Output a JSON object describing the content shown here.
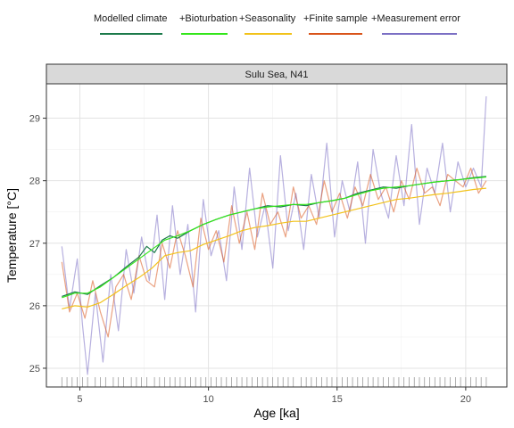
{
  "chart_data": {
    "type": "line",
    "facet_label": "Sulu Sea, N41",
    "xlabel": "Age [ka]",
    "ylabel": "Temperature [°C]",
    "xlim": [
      3.7,
      21.6
    ],
    "ylim": [
      24.7,
      29.55
    ],
    "x_ticks": [
      5,
      10,
      15,
      20
    ],
    "y_ticks": [
      25,
      26,
      27,
      28,
      29
    ],
    "grid": true,
    "legend_position": "top",
    "series": [
      {
        "name": "Modelled climate",
        "color": "#1b7a4a",
        "x": [
          4.3,
          4.8,
          5.3,
          5.8,
          6.3,
          6.8,
          7.3,
          7.6,
          7.9,
          8.2,
          8.5,
          8.8,
          9.3,
          9.8,
          10.3,
          10.8,
          11.3,
          11.8,
          12.3,
          12.8,
          13.3,
          13.8,
          14.3,
          14.8,
          15.3,
          15.8,
          16.3,
          16.8,
          17.3,
          17.8,
          18.3,
          18.8,
          19.3,
          19.8,
          20.3,
          20.8
        ],
        "values": [
          26.15,
          26.22,
          26.18,
          26.32,
          26.45,
          26.62,
          26.78,
          26.95,
          26.85,
          27.05,
          27.12,
          27.08,
          27.2,
          27.3,
          27.38,
          27.45,
          27.5,
          27.55,
          27.6,
          27.58,
          27.62,
          27.6,
          27.65,
          27.68,
          27.72,
          27.8,
          27.85,
          27.9,
          27.88,
          27.92,
          27.95,
          27.98,
          28.0,
          28.02,
          28.05,
          28.07
        ]
      },
      {
        "name": "+Bioturbation",
        "color": "#33e61a",
        "x": [
          4.3,
          4.8,
          5.3,
          5.8,
          6.3,
          6.8,
          7.3,
          7.8,
          8.3,
          8.8,
          9.3,
          9.8,
          10.3,
          10.8,
          11.3,
          11.8,
          12.3,
          12.8,
          13.3,
          13.8,
          14.3,
          14.8,
          15.3,
          15.8,
          16.3,
          16.8,
          17.3,
          17.8,
          18.3,
          18.8,
          19.3,
          19.8,
          20.3,
          20.8
        ],
        "values": [
          26.13,
          26.2,
          26.2,
          26.3,
          26.45,
          26.6,
          26.75,
          26.9,
          27.05,
          27.12,
          27.2,
          27.3,
          27.38,
          27.45,
          27.5,
          27.55,
          27.58,
          27.6,
          27.62,
          27.62,
          27.65,
          27.68,
          27.72,
          27.78,
          27.84,
          27.88,
          27.9,
          27.92,
          27.95,
          27.98,
          28.0,
          28.02,
          28.04,
          28.06
        ]
      },
      {
        "name": "+Seasonality",
        "color": "#f2c21a",
        "x": [
          4.3,
          4.8,
          5.3,
          5.8,
          6.3,
          6.8,
          7.3,
          7.8,
          8.3,
          8.8,
          9.3,
          9.8,
          10.3,
          10.8,
          11.3,
          11.8,
          12.3,
          12.8,
          13.3,
          13.8,
          14.3,
          14.8,
          15.3,
          15.8,
          16.3,
          16.8,
          17.3,
          17.8,
          18.3,
          18.8,
          19.3,
          19.8,
          20.3,
          20.8
        ],
        "values": [
          25.95,
          26.0,
          25.98,
          26.05,
          26.18,
          26.32,
          26.45,
          26.6,
          26.8,
          26.85,
          26.88,
          26.98,
          27.05,
          27.12,
          27.2,
          27.25,
          27.28,
          27.32,
          27.35,
          27.35,
          27.4,
          27.45,
          27.5,
          27.55,
          27.6,
          27.65,
          27.7,
          27.72,
          27.75,
          27.78,
          27.8,
          27.83,
          27.86,
          27.88
        ]
      },
      {
        "name": "+Finite sample",
        "color": "#d9541a",
        "x": [
          4.3,
          4.6,
          4.9,
          5.2,
          5.5,
          5.8,
          6.1,
          6.4,
          6.7,
          7.0,
          7.3,
          7.6,
          7.9,
          8.2,
          8.5,
          8.8,
          9.1,
          9.4,
          9.7,
          10.0,
          10.3,
          10.6,
          10.9,
          11.2,
          11.5,
          11.8,
          12.1,
          12.4,
          12.7,
          13.0,
          13.3,
          13.6,
          13.9,
          14.2,
          14.5,
          14.8,
          15.1,
          15.4,
          15.7,
          16.0,
          16.3,
          16.6,
          16.9,
          17.2,
          17.5,
          17.8,
          18.1,
          18.4,
          18.7,
          19.0,
          19.3,
          19.6,
          19.9,
          20.2,
          20.5,
          20.8
        ],
        "values": [
          26.7,
          25.9,
          26.2,
          25.8,
          26.4,
          25.9,
          25.5,
          26.3,
          26.5,
          26.1,
          26.8,
          26.4,
          26.3,
          27.0,
          26.6,
          27.2,
          26.8,
          26.3,
          27.4,
          26.9,
          27.2,
          26.7,
          27.6,
          27.0,
          27.5,
          26.9,
          27.8,
          27.3,
          27.5,
          27.1,
          27.9,
          27.4,
          27.6,
          27.3,
          28.0,
          27.5,
          27.8,
          27.4,
          27.9,
          27.6,
          28.1,
          27.7,
          27.9,
          27.5,
          28.0,
          27.7,
          28.2,
          27.8,
          27.9,
          27.6,
          28.1,
          28.0,
          27.9,
          28.2,
          27.8,
          28.0
        ]
      },
      {
        "name": "+Measurement error",
        "color": "#7b6fc4",
        "x": [
          4.3,
          4.6,
          4.9,
          5.1,
          5.3,
          5.6,
          5.9,
          6.2,
          6.5,
          6.8,
          7.1,
          7.4,
          7.7,
          8.0,
          8.3,
          8.6,
          8.9,
          9.2,
          9.5,
          9.8,
          10.1,
          10.4,
          10.7,
          11.0,
          11.3,
          11.6,
          11.9,
          12.2,
          12.5,
          12.8,
          13.1,
          13.4,
          13.7,
          14.0,
          14.3,
          14.6,
          14.9,
          15.2,
          15.5,
          15.8,
          16.1,
          16.4,
          16.7,
          17.0,
          17.3,
          17.6,
          17.9,
          18.2,
          18.5,
          18.8,
          19.1,
          19.4,
          19.7,
          20.0,
          20.3,
          20.6,
          20.8
        ],
        "values": [
          26.95,
          25.95,
          26.75,
          25.7,
          24.9,
          26.2,
          25.1,
          26.5,
          25.6,
          26.9,
          26.2,
          27.1,
          26.4,
          27.45,
          26.1,
          27.6,
          26.5,
          27.3,
          25.9,
          27.7,
          26.8,
          27.2,
          26.4,
          27.9,
          26.9,
          28.2,
          27.1,
          27.6,
          26.6,
          28.4,
          27.2,
          27.8,
          26.9,
          28.1,
          27.4,
          28.6,
          27.1,
          28.0,
          27.5,
          28.3,
          27.0,
          28.5,
          27.8,
          27.4,
          28.4,
          27.6,
          28.9,
          27.3,
          28.2,
          27.8,
          28.6,
          27.5,
          28.3,
          27.9,
          28.2,
          27.9,
          29.35
        ]
      }
    ],
    "sample_ages_rug": [
      4.3,
      4.5,
      4.7,
      4.9,
      5.1,
      5.3,
      5.6,
      5.8,
      6.0,
      6.3,
      6.5,
      6.7,
      7.0,
      7.2,
      7.4,
      7.6,
      7.9,
      8.1,
      8.3,
      8.5,
      8.7,
      8.9,
      9.1,
      9.3,
      9.5,
      9.7,
      9.9,
      10.1,
      10.3,
      10.5,
      10.7,
      10.9,
      11.1,
      11.3,
      11.5,
      11.7,
      11.9,
      12.1,
      12.3,
      12.5,
      12.7,
      12.9,
      13.1,
      13.3,
      13.6,
      13.8,
      14.0,
      14.2,
      14.4,
      14.6,
      14.8,
      15.0,
      15.2,
      15.4,
      15.6,
      15.8,
      16.0,
      16.2,
      16.4,
      16.6,
      16.8,
      17.0,
      17.2,
      17.4,
      17.6,
      17.8,
      18.0,
      18.2,
      18.4,
      18.6,
      18.8,
      19.0,
      19.2,
      19.4,
      19.6,
      19.8,
      20.0,
      20.2,
      20.4,
      20.6,
      20.8
    ]
  }
}
